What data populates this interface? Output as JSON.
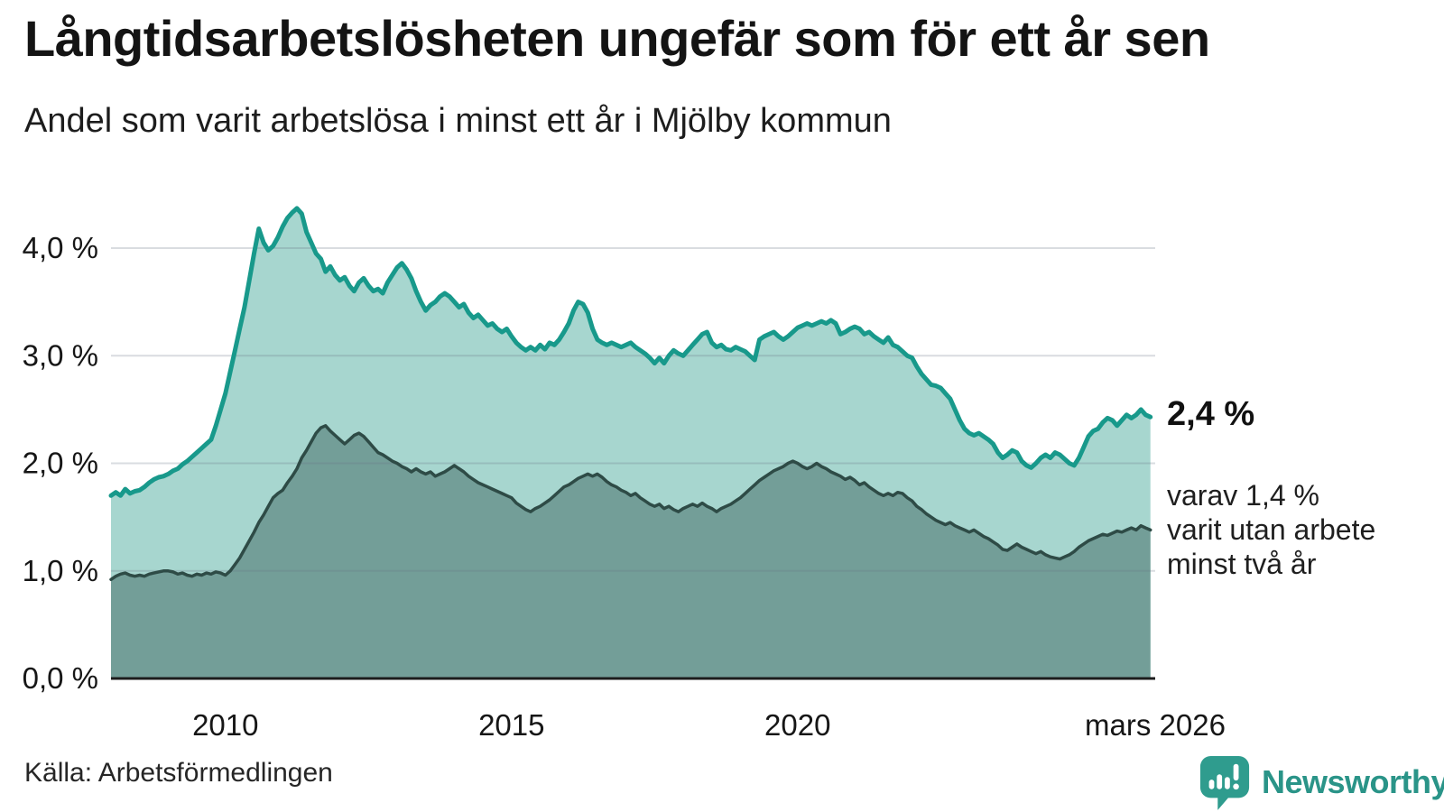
{
  "title": "Långtidsarbetslösheten ungefär som för ett år sen",
  "subtitle": "Andel som varit arbetslösa i minst ett år i Mjölby kommun",
  "source": "Källa: Arbetsförmedlingen",
  "logo": {
    "text": "Newsworthy",
    "icon": "speech-bubble-with-bars-and-exclamation"
  },
  "annotations": {
    "end_value_label": "2,4 %",
    "secondary_note_lines": [
      "varav 1,4 %",
      "varit utan arbete",
      "minst två år"
    ]
  },
  "colors": {
    "accent_teal_line": "#18998b",
    "light_area_fill": "#a7d6cf",
    "dark_area_fill": "#739e98",
    "dark_line": "#2e4b46",
    "gridline": "rgba(105,115,130,0.25)",
    "axis": "#1c1c1c",
    "logo_teal": "#2f9c8e"
  },
  "chart_data": {
    "type": "area",
    "title": "Långtidsarbetslösheten ungefär som för ett år sen",
    "subtitle": "Andel som varit arbetslösa i minst ett år i Mjölby kommun",
    "unit": "%",
    "x_start": "2008-01",
    "x_end": "2026-03",
    "x_resolution": "monthly",
    "x_axis": {
      "range": [
        2008.0,
        2026.25
      ],
      "ticks": [
        {
          "t": 2010.0,
          "label": "2010"
        },
        {
          "t": 2015.0,
          "label": "2015"
        },
        {
          "t": 2020.0,
          "label": "2020"
        },
        {
          "t": 2026.25,
          "label": "mars 2026"
        }
      ]
    },
    "y_axis": {
      "range": [
        0,
        4.67
      ],
      "gridlines": true,
      "ticks": [
        {
          "v": 0,
          "label": "0,0 %"
        },
        {
          "v": 1,
          "label": "1,0 %"
        },
        {
          "v": 2,
          "label": "2,0 %"
        },
        {
          "v": 3,
          "label": "3,0 %"
        },
        {
          "v": 4,
          "label": "4,0 %"
        }
      ]
    },
    "series": [
      {
        "name": "Arbetslösa minst ett år",
        "color": "#18998b",
        "fill": "#a7d6cf",
        "end_label": "2,4 %",
        "end_value": 2.4,
        "values": [
          1.7,
          1.73,
          1.7,
          1.76,
          1.72,
          1.74,
          1.75,
          1.78,
          1.82,
          1.85,
          1.87,
          1.88,
          1.9,
          1.93,
          1.95,
          1.99,
          2.02,
          2.06,
          2.1,
          2.14,
          2.18,
          2.22,
          2.35,
          2.5,
          2.65,
          2.85,
          3.05,
          3.25,
          3.45,
          3.7,
          3.95,
          4.18,
          4.05,
          3.98,
          4.02,
          4.1,
          4.2,
          4.28,
          4.33,
          4.37,
          4.32,
          4.15,
          4.05,
          3.95,
          3.9,
          3.78,
          3.83,
          3.75,
          3.7,
          3.73,
          3.65,
          3.6,
          3.68,
          3.72,
          3.65,
          3.6,
          3.62,
          3.58,
          3.68,
          3.75,
          3.82,
          3.86,
          3.8,
          3.72,
          3.6,
          3.5,
          3.42,
          3.47,
          3.5,
          3.55,
          3.58,
          3.55,
          3.5,
          3.45,
          3.48,
          3.4,
          3.35,
          3.38,
          3.33,
          3.28,
          3.3,
          3.25,
          3.22,
          3.25,
          3.18,
          3.12,
          3.08,
          3.05,
          3.08,
          3.05,
          3.1,
          3.06,
          3.12,
          3.1,
          3.15,
          3.22,
          3.3,
          3.42,
          3.5,
          3.48,
          3.4,
          3.25,
          3.15,
          3.12,
          3.1,
          3.12,
          3.1,
          3.08,
          3.1,
          3.12,
          3.08,
          3.05,
          3.02,
          2.98,
          2.93,
          2.98,
          2.93,
          3.0,
          3.05,
          3.02,
          3.0,
          3.05,
          3.1,
          3.15,
          3.2,
          3.22,
          3.12,
          3.08,
          3.1,
          3.06,
          3.05,
          3.08,
          3.06,
          3.04,
          3.0,
          2.96,
          3.15,
          3.18,
          3.2,
          3.22,
          3.18,
          3.15,
          3.18,
          3.22,
          3.26,
          3.28,
          3.3,
          3.28,
          3.3,
          3.32,
          3.3,
          3.33,
          3.3,
          3.2,
          3.22,
          3.25,
          3.27,
          3.25,
          3.2,
          3.22,
          3.18,
          3.15,
          3.12,
          3.17,
          3.1,
          3.08,
          3.04,
          3.0,
          2.98,
          2.9,
          2.83,
          2.78,
          2.73,
          2.72,
          2.7,
          2.65,
          2.6,
          2.5,
          2.4,
          2.32,
          2.28,
          2.26,
          2.28,
          2.25,
          2.22,
          2.18,
          2.1,
          2.05,
          2.08,
          2.12,
          2.1,
          2.02,
          1.98,
          1.96,
          2.0,
          2.05,
          2.08,
          2.05,
          2.1,
          2.08,
          2.04,
          2.0,
          1.98,
          2.05,
          2.15,
          2.25,
          2.3,
          2.32,
          2.38,
          2.42,
          2.4,
          2.35,
          2.4,
          2.45,
          2.42,
          2.45,
          2.5,
          2.45,
          2.43
        ]
      },
      {
        "name": "Utan arbete minst två år",
        "color": "#2e4b46",
        "fill": "#739e98",
        "end_label": "1,4 %",
        "end_value": 1.4,
        "values": [
          0.92,
          0.95,
          0.97,
          0.98,
          0.96,
          0.95,
          0.96,
          0.95,
          0.97,
          0.98,
          0.99,
          1.0,
          1.0,
          0.99,
          0.97,
          0.98,
          0.96,
          0.95,
          0.97,
          0.96,
          0.98,
          0.97,
          0.99,
          0.98,
          0.96,
          1.0,
          1.06,
          1.12,
          1.2,
          1.28,
          1.36,
          1.45,
          1.52,
          1.6,
          1.68,
          1.72,
          1.75,
          1.82,
          1.88,
          1.95,
          2.05,
          2.12,
          2.2,
          2.28,
          2.33,
          2.35,
          2.3,
          2.26,
          2.22,
          2.18,
          2.22,
          2.26,
          2.28,
          2.25,
          2.2,
          2.15,
          2.1,
          2.08,
          2.05,
          2.02,
          2.0,
          1.97,
          1.95,
          1.92,
          1.95,
          1.92,
          1.9,
          1.92,
          1.88,
          1.9,
          1.92,
          1.95,
          1.98,
          1.95,
          1.92,
          1.88,
          1.85,
          1.82,
          1.8,
          1.78,
          1.76,
          1.74,
          1.72,
          1.7,
          1.68,
          1.63,
          1.6,
          1.57,
          1.55,
          1.58,
          1.6,
          1.63,
          1.66,
          1.7,
          1.74,
          1.78,
          1.8,
          1.83,
          1.86,
          1.88,
          1.9,
          1.88,
          1.9,
          1.87,
          1.83,
          1.8,
          1.78,
          1.75,
          1.73,
          1.7,
          1.72,
          1.68,
          1.65,
          1.62,
          1.6,
          1.62,
          1.58,
          1.6,
          1.57,
          1.55,
          1.58,
          1.6,
          1.62,
          1.6,
          1.63,
          1.6,
          1.58,
          1.55,
          1.58,
          1.6,
          1.62,
          1.65,
          1.68,
          1.72,
          1.76,
          1.8,
          1.84,
          1.87,
          1.9,
          1.93,
          1.95,
          1.97,
          2.0,
          2.02,
          2.0,
          1.97,
          1.95,
          1.97,
          2.0,
          1.97,
          1.95,
          1.92,
          1.9,
          1.88,
          1.85,
          1.87,
          1.84,
          1.8,
          1.82,
          1.78,
          1.75,
          1.72,
          1.7,
          1.72,
          1.7,
          1.73,
          1.72,
          1.68,
          1.65,
          1.6,
          1.57,
          1.53,
          1.5,
          1.47,
          1.45,
          1.43,
          1.45,
          1.42,
          1.4,
          1.38,
          1.36,
          1.38,
          1.35,
          1.32,
          1.3,
          1.27,
          1.24,
          1.2,
          1.19,
          1.22,
          1.25,
          1.22,
          1.2,
          1.18,
          1.16,
          1.18,
          1.15,
          1.13,
          1.12,
          1.11,
          1.13,
          1.15,
          1.18,
          1.22,
          1.25,
          1.28,
          1.3,
          1.32,
          1.34,
          1.33,
          1.35,
          1.37,
          1.36,
          1.38,
          1.4,
          1.38,
          1.42,
          1.4,
          1.38
        ]
      }
    ]
  }
}
